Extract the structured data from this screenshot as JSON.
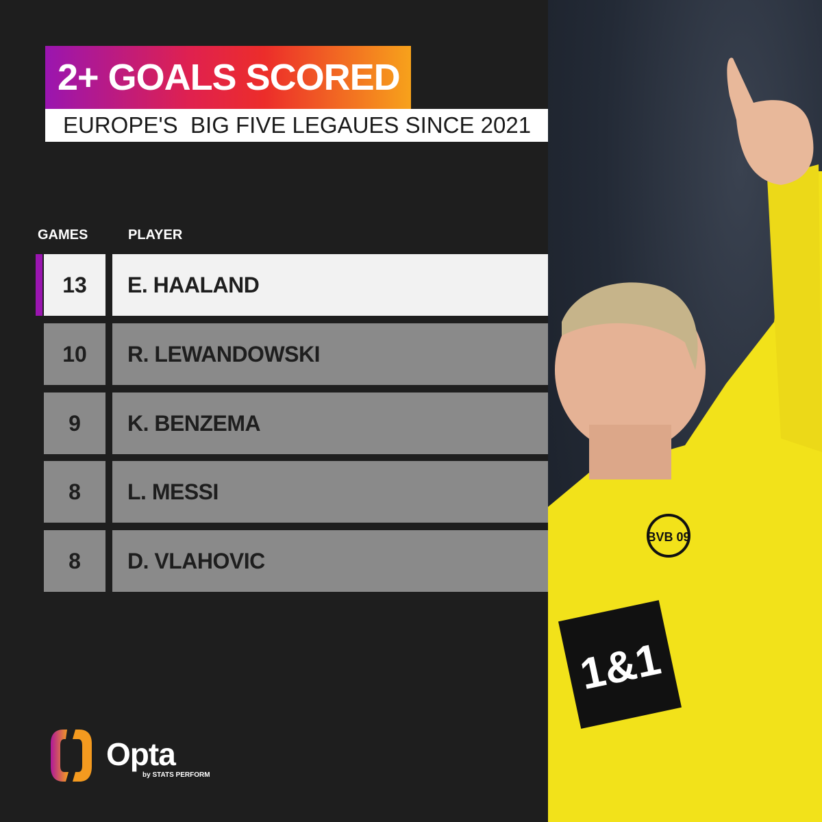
{
  "title": "2+ GOALS SCORED",
  "subtitle": "EUROPE'S  BIG FIVE LEGAUES SINCE 2021",
  "columns": {
    "games": "GAMES",
    "player": "PLAYER"
  },
  "rows": [
    {
      "games": "13",
      "player": "E. HAALAND"
    },
    {
      "games": "10",
      "player": "R. LEWANDOWSKI"
    },
    {
      "games": "9",
      "player": "K. BENZEMA"
    },
    {
      "games": "8",
      "player": "L. MESSI"
    },
    {
      "games": "8",
      "player": "D. VLAHOVIC"
    }
  ],
  "brand": {
    "name": "Opta",
    "tagline": "by STATS PERFORM"
  },
  "photo": {
    "shirt_sponsor": "1&1",
    "crest": "BVB 09"
  },
  "colors": {
    "accent_purple": "#9a15b0",
    "accent_red": "#ec2d2a",
    "accent_orange": "#f7a21b",
    "highlight_row": "#f2f2f2",
    "row": "#8a8a8a",
    "background": "#1e1e1e"
  }
}
